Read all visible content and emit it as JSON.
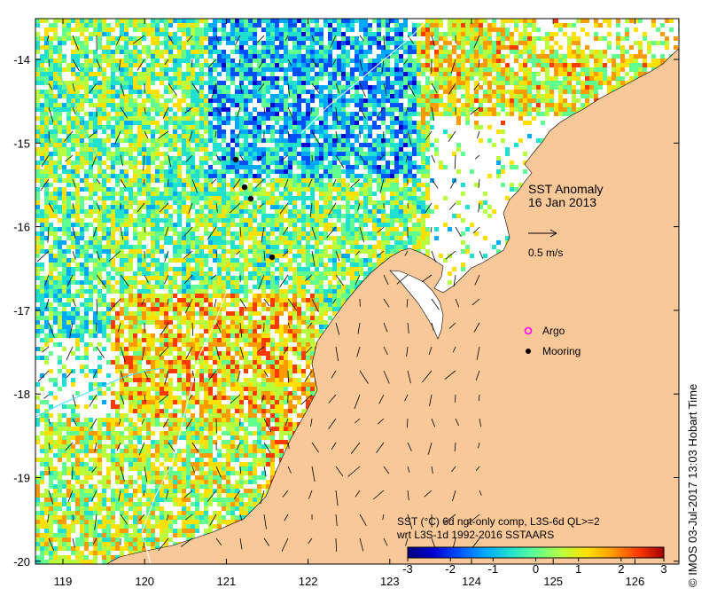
{
  "map": {
    "title": "SST Anomaly",
    "date": "16 Jan 2013",
    "scale_arrow_label": "0.5 m/s",
    "legend": {
      "argo_label": "Argo",
      "mooring_label": "Mooring"
    },
    "colorbar": {
      "caption_line1": "SST (°C) 6d ngt-only comp, L3S-6d QL>=2",
      "caption_line2": "wrt L3S-1d 1992-2016 SSTAARS",
      "ticks": [
        "-3",
        "-2",
        "-1",
        "0",
        "1",
        "2",
        "3"
      ],
      "colors": [
        "#00007f",
        "#0000d0",
        "#0050ff",
        "#00a8ff",
        "#20e0d0",
        "#60ff90",
        "#b8ff40",
        "#ffe000",
        "#ff9a00",
        "#ff3a00",
        "#a00000"
      ]
    },
    "axes": {
      "x_ticks": [
        "119",
        "120",
        "121",
        "122",
        "123",
        "124",
        "125",
        "126"
      ],
      "y_ticks": [
        "-14",
        "-15",
        "-16",
        "-17",
        "-18",
        "-19",
        "-20"
      ]
    },
    "credit": "© IMOS 03-Jul-2017 13:03 Hobart Time",
    "colors": {
      "land": "#f9c898",
      "frame": "#000000",
      "argo_marker": "#ff00ff",
      "mooring_marker": "#000000"
    }
  }
}
